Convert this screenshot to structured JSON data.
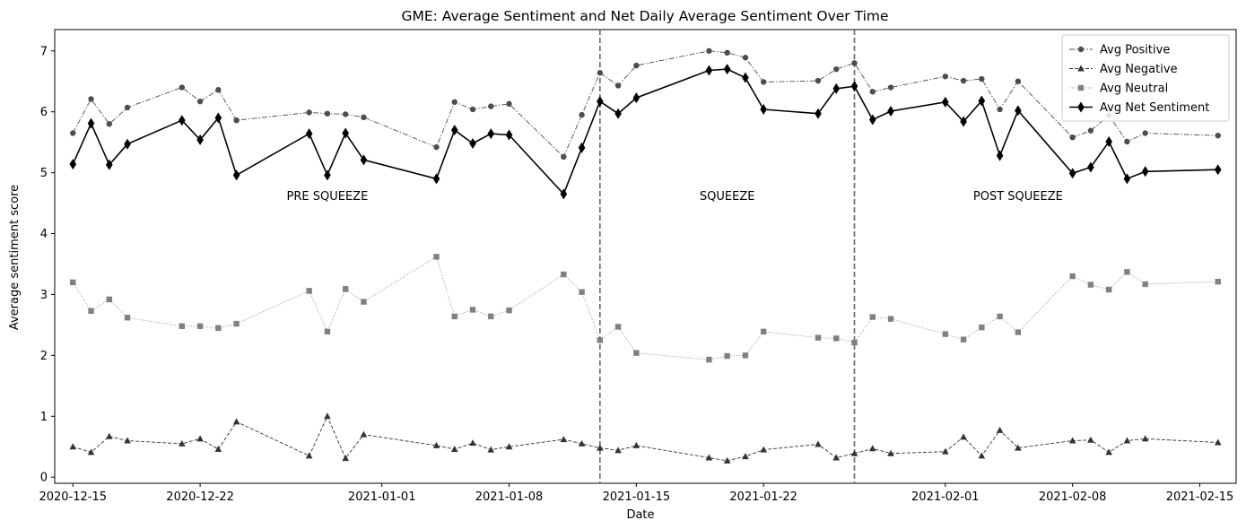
{
  "chart_data": {
    "type": "line",
    "title": "GME: Average Sentiment and Net Daily Average Sentiment Over Time",
    "xlabel": "Date",
    "ylabel": "Average sentiment score",
    "xlim": [
      "2020-12-14",
      "2021-02-17"
    ],
    "ylim": [
      -0.1,
      7.35
    ],
    "x_ticks": [
      "2020-12-15",
      "2020-12-22",
      "2021-01-01",
      "2021-01-08",
      "2021-01-15",
      "2021-01-22",
      "2021-02-01",
      "2021-02-08",
      "2021-02-15"
    ],
    "y_ticks": [
      0,
      1,
      2,
      3,
      4,
      5,
      6,
      7
    ],
    "grid": false,
    "legend_position": "top-right",
    "x": [
      "2020-12-15",
      "2020-12-16",
      "2020-12-17",
      "2020-12-18",
      "2020-12-21",
      "2020-12-22",
      "2020-12-23",
      "2020-12-24",
      "2020-12-28",
      "2020-12-29",
      "2020-12-30",
      "2020-12-31",
      "2021-01-04",
      "2021-01-05",
      "2021-01-06",
      "2021-01-07",
      "2021-01-08",
      "2021-01-11",
      "2021-01-12",
      "2021-01-13",
      "2021-01-14",
      "2021-01-15",
      "2021-01-19",
      "2021-01-20",
      "2021-01-21",
      "2021-01-22",
      "2021-01-25",
      "2021-01-26",
      "2021-01-27",
      "2021-01-28",
      "2021-01-29",
      "2021-02-01",
      "2021-02-02",
      "2021-02-03",
      "2021-02-04",
      "2021-02-05",
      "2021-02-08",
      "2021-02-09",
      "2021-02-10",
      "2021-02-11",
      "2021-02-12",
      "2021-02-16"
    ],
    "series": [
      {
        "name": "Avg Positive",
        "marker": "circle",
        "line": "dashdot",
        "color": "#4d4d4d",
        "values": [
          5.65,
          6.21,
          5.8,
          6.07,
          6.4,
          6.17,
          6.36,
          5.86,
          5.99,
          5.97,
          5.96,
          5.91,
          5.42,
          6.16,
          6.04,
          6.09,
          6.13,
          5.26,
          5.95,
          6.64,
          6.43,
          6.76,
          7.0,
          6.97,
          6.89,
          6.49,
          6.51,
          6.7,
          6.8,
          6.33,
          6.4,
          6.58,
          6.51,
          6.54,
          6.04,
          6.5,
          5.58,
          5.69,
          5.94,
          5.51,
          5.65,
          5.61
        ]
      },
      {
        "name": "Avg Negative",
        "marker": "triangle",
        "line": "dashed",
        "color": "#333333",
        "values": [
          0.5,
          0.41,
          0.67,
          0.6,
          0.55,
          0.63,
          0.46,
          0.91,
          0.35,
          1.0,
          0.31,
          0.7,
          0.52,
          0.46,
          0.56,
          0.45,
          0.5,
          0.62,
          0.55,
          0.48,
          0.44,
          0.52,
          0.32,
          0.27,
          0.34,
          0.45,
          0.54,
          0.32,
          0.39,
          0.47,
          0.39,
          0.42,
          0.66,
          0.35,
          0.77,
          0.48,
          0.6,
          0.61,
          0.41,
          0.6,
          0.63,
          0.57
        ]
      },
      {
        "name": "Avg Neutral",
        "marker": "square",
        "line": "dotted",
        "color": "#808080",
        "values": [
          3.2,
          2.73,
          2.92,
          2.62,
          2.48,
          2.48,
          2.45,
          2.52,
          3.06,
          2.39,
          3.09,
          2.88,
          3.62,
          2.64,
          2.75,
          2.64,
          2.74,
          3.33,
          3.04,
          2.25,
          2.47,
          2.04,
          1.93,
          1.99,
          2.0,
          2.39,
          2.29,
          2.28,
          2.21,
          2.63,
          2.6,
          2.35,
          2.26,
          2.46,
          2.64,
          2.38,
          3.3,
          3.16,
          3.08,
          3.37,
          3.17,
          3.21
        ]
      },
      {
        "name": "Avg Net Sentiment",
        "marker": "diamond",
        "line": "solid",
        "color": "#000000",
        "values": [
          5.14,
          5.81,
          5.13,
          5.47,
          5.86,
          5.54,
          5.9,
          4.96,
          5.64,
          4.96,
          5.65,
          5.21,
          4.9,
          5.7,
          5.48,
          5.64,
          5.62,
          4.65,
          5.41,
          6.17,
          5.97,
          6.23,
          6.68,
          6.7,
          6.56,
          6.04,
          5.97,
          6.38,
          6.42,
          5.87,
          6.01,
          6.16,
          5.84,
          6.18,
          5.28,
          6.02,
          4.99,
          5.09,
          5.51,
          4.9,
          5.02,
          5.05
        ]
      }
    ],
    "vertical_lines": [
      "2021-01-13",
      "2021-01-27"
    ],
    "annotations": [
      {
        "text": "PRE SQUEEZE",
        "x": "2020-12-29",
        "y": 4.55
      },
      {
        "text": "SQUEEZE",
        "x": "2021-01-20",
        "y": 4.55
      },
      {
        "text": "POST SQUEEZE",
        "x": "2021-02-05",
        "y": 4.55
      }
    ]
  }
}
